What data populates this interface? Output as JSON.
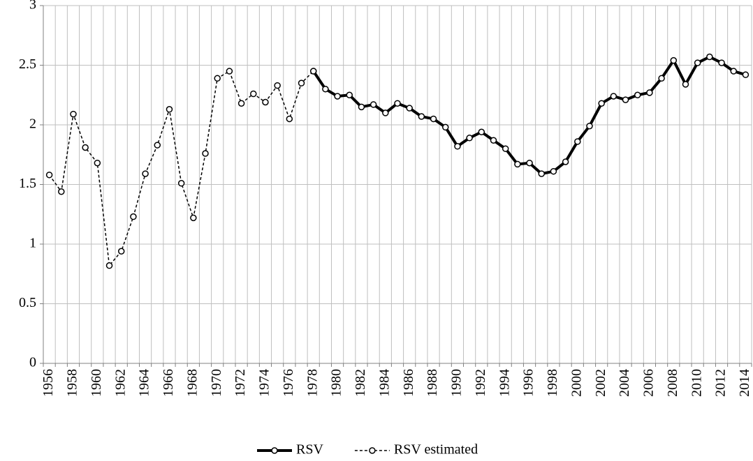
{
  "chart_data": {
    "type": "line",
    "categories": [
      "1956",
      null,
      "1958",
      null,
      "1960",
      null,
      "1962",
      null,
      "1964",
      null,
      "1966",
      null,
      "1968",
      null,
      "1970",
      null,
      "1972",
      null,
      "1974",
      null,
      "1976",
      null,
      "1978",
      null,
      "1980",
      null,
      "1982",
      null,
      "1984",
      null,
      "1986",
      null,
      "1988",
      null,
      "1990",
      null,
      "1992",
      null,
      "1994",
      null,
      "1996",
      null,
      "1998",
      null,
      "2000",
      null,
      "2002",
      null,
      "2004",
      null,
      "2006",
      null,
      "2008",
      null,
      "2010",
      null,
      "2012",
      null,
      "2014"
    ],
    "series": [
      {
        "name": "RSV",
        "color": "#000000",
        "line_style": "solid",
        "values": [
          null,
          null,
          null,
          null,
          null,
          null,
          null,
          null,
          null,
          null,
          null,
          null,
          null,
          null,
          null,
          null,
          null,
          null,
          null,
          null,
          null,
          null,
          2.45,
          2.3,
          2.24,
          2.25,
          2.15,
          2.17,
          2.1,
          2.18,
          2.14,
          2.07,
          2.05,
          1.98,
          1.82,
          1.89,
          1.94,
          1.87,
          1.8,
          1.67,
          1.68,
          1.59,
          1.61,
          1.69,
          1.86,
          1.99,
          2.18,
          2.24,
          2.21,
          2.25,
          2.27,
          2.39,
          2.54,
          2.34,
          2.52,
          2.57,
          2.52,
          2.45,
          2.42
        ]
      },
      {
        "name": "RSV estimated",
        "color": "#000000",
        "line_style": "dashed",
        "values": [
          1.58,
          1.44,
          2.09,
          1.81,
          1.68,
          0.82,
          0.94,
          1.23,
          1.59,
          1.83,
          2.13,
          1.51,
          1.22,
          1.76,
          2.39,
          2.45,
          2.18,
          2.26,
          2.19,
          2.33,
          2.05,
          2.35,
          2.45,
          null,
          null,
          null,
          null,
          null,
          null,
          null,
          null,
          null,
          null,
          null,
          null,
          null,
          null,
          null,
          null,
          null,
          null,
          null,
          null,
          null,
          null,
          null,
          null,
          null,
          null,
          null,
          null,
          null,
          null,
          null,
          null,
          null,
          null,
          null,
          null
        ]
      }
    ],
    "ylim": [
      0,
      3
    ],
    "yticks": [
      0,
      0.5,
      1,
      1.5,
      2,
      2.5,
      3
    ],
    "grid": true,
    "legend": "bottom"
  }
}
